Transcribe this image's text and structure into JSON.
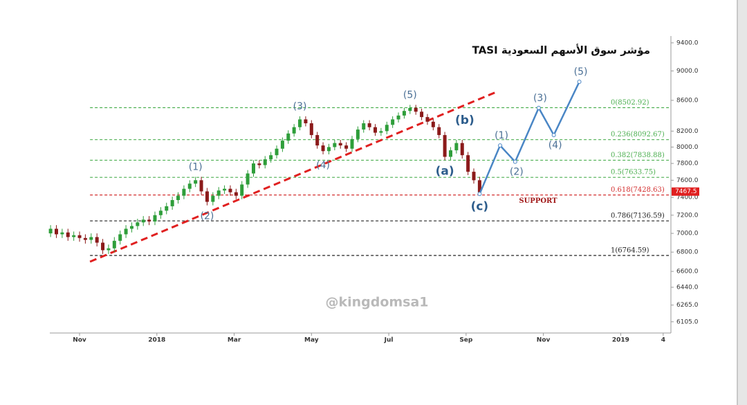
{
  "chart_data": {
    "type": "candlestick",
    "title": "TASI مؤشر سوق الأسهم السعودية",
    "watermark": "@kingdomsa1",
    "ylog": true,
    "ylim": [
      6000,
      9500
    ],
    "yticks": [
      {
        "value": 9400,
        "label": "9400.0"
      },
      {
        "value": 9000,
        "label": "9000.0"
      },
      {
        "value": 8600,
        "label": "8600.0"
      },
      {
        "value": 8200,
        "label": "8200.0"
      },
      {
        "value": 8000,
        "label": "8000.0"
      },
      {
        "value": 7800,
        "label": "7800.0"
      },
      {
        "value": 7600,
        "label": "7600.0"
      },
      {
        "value": 7400,
        "label": "7400.0"
      },
      {
        "value": 7200,
        "label": "7200.0"
      },
      {
        "value": 7000,
        "label": "7000.0"
      },
      {
        "value": 6800,
        "label": "6800.0"
      },
      {
        "value": 6600,
        "label": "6600.0"
      },
      {
        "value": 6440,
        "label": "6440.0"
      },
      {
        "value": 6265,
        "label": "6265.0"
      },
      {
        "value": 6105,
        "label": "6105.0"
      }
    ],
    "xlim": [
      0.23,
      16.3
    ],
    "xticks": [
      {
        "value": 1,
        "label": "Nov"
      },
      {
        "value": 3,
        "label": "2018"
      },
      {
        "value": 5,
        "label": "Mar"
      },
      {
        "value": 7,
        "label": "May"
      },
      {
        "value": 9,
        "label": "Jul"
      },
      {
        "value": 11,
        "label": "Sep"
      },
      {
        "value": 13,
        "label": "Nov"
      },
      {
        "value": 15,
        "label": "2019"
      },
      {
        "value": 16.1,
        "label": "4"
      }
    ],
    "up_color": "#2e9e3a",
    "down_color": "#8b1a1a",
    "x": [
      0.25,
      0.4,
      0.55,
      0.7,
      0.85,
      1,
      1.15,
      1.3,
      1.45,
      1.6,
      1.75,
      1.9,
      2.05,
      2.2,
      2.35,
      2.5,
      2.65,
      2.8,
      2.95,
      3.1,
      3.25,
      3.4,
      3.55,
      3.7,
      3.85,
      4,
      4.15,
      4.3,
      4.45,
      4.6,
      4.75,
      4.9,
      5.05,
      5.2,
      5.35,
      5.5,
      5.65,
      5.8,
      5.95,
      6.1,
      6.25,
      6.4,
      6.55,
      6.7,
      6.85,
      7,
      7.15,
      7.3,
      7.45,
      7.6,
      7.75,
      7.9,
      8.05,
      8.2,
      8.35,
      8.5,
      8.65,
      8.8,
      8.95,
      9.1,
      9.25,
      9.4,
      9.55,
      9.7,
      9.85,
      10,
      10.15,
      10.3,
      10.45,
      10.6,
      10.75,
      10.9,
      11.05,
      11.2,
      11.35
    ],
    "open": [
      7000,
      7050,
      6990,
      7010,
      6960,
      6980,
      6950,
      6930,
      6960,
      6900,
      6820,
      6840,
      6920,
      6990,
      7050,
      7080,
      7120,
      7150,
      7130,
      7200,
      7250,
      7300,
      7370,
      7420,
      7500,
      7560,
      7600,
      7470,
      7350,
      7420,
      7480,
      7500,
      7460,
      7420,
      7550,
      7680,
      7800,
      7780,
      7850,
      7900,
      7980,
      8080,
      8170,
      8250,
      8350,
      8300,
      8150,
      8020,
      7950,
      8000,
      8050,
      8020,
      7980,
      8100,
      8220,
      8300,
      8250,
      8180,
      8200,
      8280,
      8350,
      8400,
      8460,
      8500,
      8450,
      8380,
      8320,
      8250,
      8150,
      7880,
      7960,
      8050,
      7900,
      7700,
      7600
    ],
    "high": [
      7090,
      7090,
      7050,
      7050,
      7020,
      7020,
      6990,
      7000,
      7000,
      6940,
      6880,
      6960,
      7030,
      7090,
      7120,
      7160,
      7190,
      7190,
      7240,
      7290,
      7340,
      7410,
      7460,
      7540,
      7600,
      7640,
      7640,
      7510,
      7460,
      7520,
      7540,
      7540,
      7500,
      7590,
      7720,
      7840,
      7840,
      7890,
      7940,
      8020,
      8120,
      8210,
      8290,
      8390,
      8390,
      8340,
      8190,
      8060,
      8040,
      8090,
      8090,
      8060,
      8140,
      8260,
      8340,
      8340,
      8290,
      8240,
      8320,
      8390,
      8440,
      8500,
      8540,
      8540,
      8490,
      8420,
      8360,
      8290,
      8190,
      8000,
      8090,
      8090,
      7940,
      7740,
      7640
    ],
    "low": [
      6960,
      6950,
      6950,
      6920,
      6920,
      6910,
      6890,
      6890,
      6860,
      6780,
      6780,
      6800,
      6880,
      6950,
      7010,
      7040,
      7080,
      7090,
      7090,
      7160,
      7210,
      7260,
      7330,
      7380,
      7460,
      7520,
      7430,
      7310,
      7310,
      7380,
      7440,
      7420,
      7380,
      7380,
      7510,
      7640,
      7740,
      7740,
      7810,
      7860,
      7940,
      8040,
      8130,
      8210,
      8260,
      8110,
      7980,
      7910,
      7910,
      7960,
      7980,
      7940,
      7940,
      8060,
      8180,
      8210,
      8140,
      8140,
      8160,
      8240,
      8310,
      8360,
      8420,
      8410,
      8340,
      8280,
      8210,
      8110,
      7840,
      7840,
      7920,
      7860,
      7660,
      7560,
      7420
    ],
    "close": [
      7050,
      6990,
      7010,
      6960,
      6980,
      6950,
      6930,
      6960,
      6900,
      6820,
      6840,
      6920,
      6990,
      7050,
      7080,
      7120,
      7150,
      7130,
      7200,
      7250,
      7300,
      7370,
      7420,
      7500,
      7560,
      7600,
      7470,
      7350,
      7420,
      7480,
      7500,
      7460,
      7420,
      7550,
      7680,
      7800,
      7780,
      7850,
      7900,
      7980,
      8080,
      8170,
      8250,
      8350,
      8300,
      8150,
      8020,
      7950,
      8000,
      8050,
      8020,
      7980,
      8100,
      8220,
      8300,
      8250,
      8180,
      8200,
      8280,
      8350,
      8400,
      8460,
      8500,
      8450,
      8380,
      8320,
      8250,
      8150,
      7880,
      7960,
      8050,
      7900,
      7700,
      7600,
      7460
    ],
    "trendline": {
      "color": "#e02020",
      "x": [
        1.27,
        11.82
      ],
      "y": [
        6700,
        8720
      ]
    },
    "fib_levels": [
      {
        "value": 8502.92,
        "label": "0(8502.92)",
        "color": "#4caf50"
      },
      {
        "value": 8092.67,
        "label": "0.236(8092.67)",
        "color": "#4caf50"
      },
      {
        "value": 7838.88,
        "label": "0.382(7838.88)",
        "color": "#4caf50"
      },
      {
        "value": 7633.75,
        "label": "0.5(7633.75)",
        "color": "#4caf50"
      },
      {
        "value": 7428.63,
        "label": "0.618(7428.63)",
        "color": "#d32f2f"
      },
      {
        "value": 7136.59,
        "label": "0.786(7136.59)",
        "color": "#222222"
      },
      {
        "value": 6764.59,
        "label": "1(6764.59)",
        "color": "#222222"
      }
    ],
    "fib_start_x": 1.27,
    "support_label": "SUPPORT",
    "price_label": {
      "value": 7467.5,
      "label": "7467.5"
    },
    "waves": [
      {
        "label": "(1)",
        "x": 4,
        "y": 7640,
        "pos": "above"
      },
      {
        "label": "(2)",
        "x": 4.3,
        "y": 7310,
        "pos": "below"
      },
      {
        "label": "(3)",
        "x": 6.7,
        "y": 8390,
        "pos": "above"
      },
      {
        "label": "(4)",
        "x": 7.3,
        "y": 7910,
        "pos": "below"
      },
      {
        "label": "(5)",
        "x": 9.55,
        "y": 8540,
        "pos": "above"
      },
      {
        "label": "(a)",
        "x": 10.45,
        "y": 7840,
        "pos": "below"
      },
      {
        "label": "(b)",
        "x": 10.75,
        "y": 8090,
        "pos": "above"
      },
      {
        "label": "(c)",
        "x": 11.35,
        "y": 7420,
        "pos": "below"
      }
    ],
    "projection": {
      "color": "#4a86c5",
      "x": [
        11.35,
        11.88,
        12.27,
        12.88,
        13.27,
        13.93
      ],
      "y": [
        7440,
        8020,
        7820,
        8500,
        8150,
        8850
      ],
      "labels": [
        null,
        "(1)",
        "(2)",
        "(3)",
        "(4)",
        "(5)"
      ],
      "pos": [
        null,
        "above",
        "below",
        "above",
        "below",
        "above"
      ]
    }
  }
}
